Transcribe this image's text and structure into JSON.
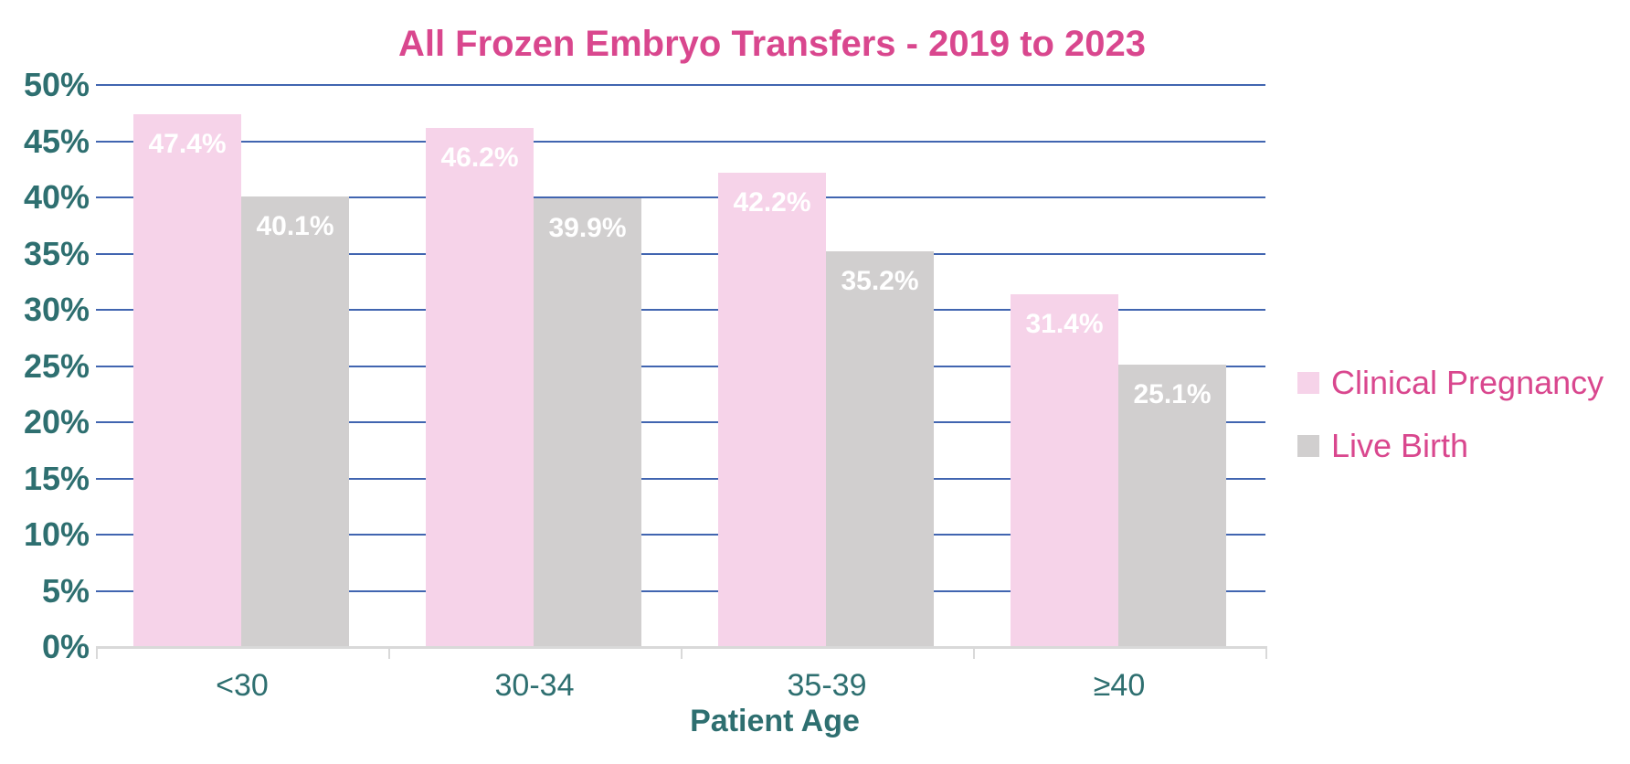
{
  "chart_data": {
    "type": "bar",
    "title": "All Frozen Embryo Transfers - 2019 to 2023",
    "xlabel": "Patient Age",
    "ylabel": "",
    "categories": [
      "<30",
      "30-34",
      "35-39",
      "≥40"
    ],
    "series": [
      {
        "name": "Clinical Pregnancy",
        "color": "#f6d3e9",
        "values": [
          47.4,
          46.2,
          42.2,
          31.4
        ],
        "data_labels": [
          "47.4%",
          "46.2%",
          "42.2%",
          "31.4%"
        ]
      },
      {
        "name": "Live Birth",
        "color": "#d1cfcf",
        "values": [
          40.1,
          39.9,
          35.2,
          25.1
        ],
        "data_labels": [
          "40.1%",
          "39.9%",
          "35.2%",
          "25.1%"
        ]
      }
    ],
    "ylim": [
      0,
      50
    ],
    "ytick_step": 5,
    "ytick_labels": [
      "0%",
      "5%",
      "10%",
      "15%",
      "20%",
      "25%",
      "30%",
      "35%",
      "40%",
      "45%",
      "50%"
    ],
    "grid": true,
    "legend_position": "right"
  },
  "colors": {
    "title_text": "#d9478e",
    "axis_text": "#2e6f70",
    "gridline": "#4165b0",
    "axis_line": "#d9d9d9",
    "bar_label_text": "#ffffff"
  }
}
